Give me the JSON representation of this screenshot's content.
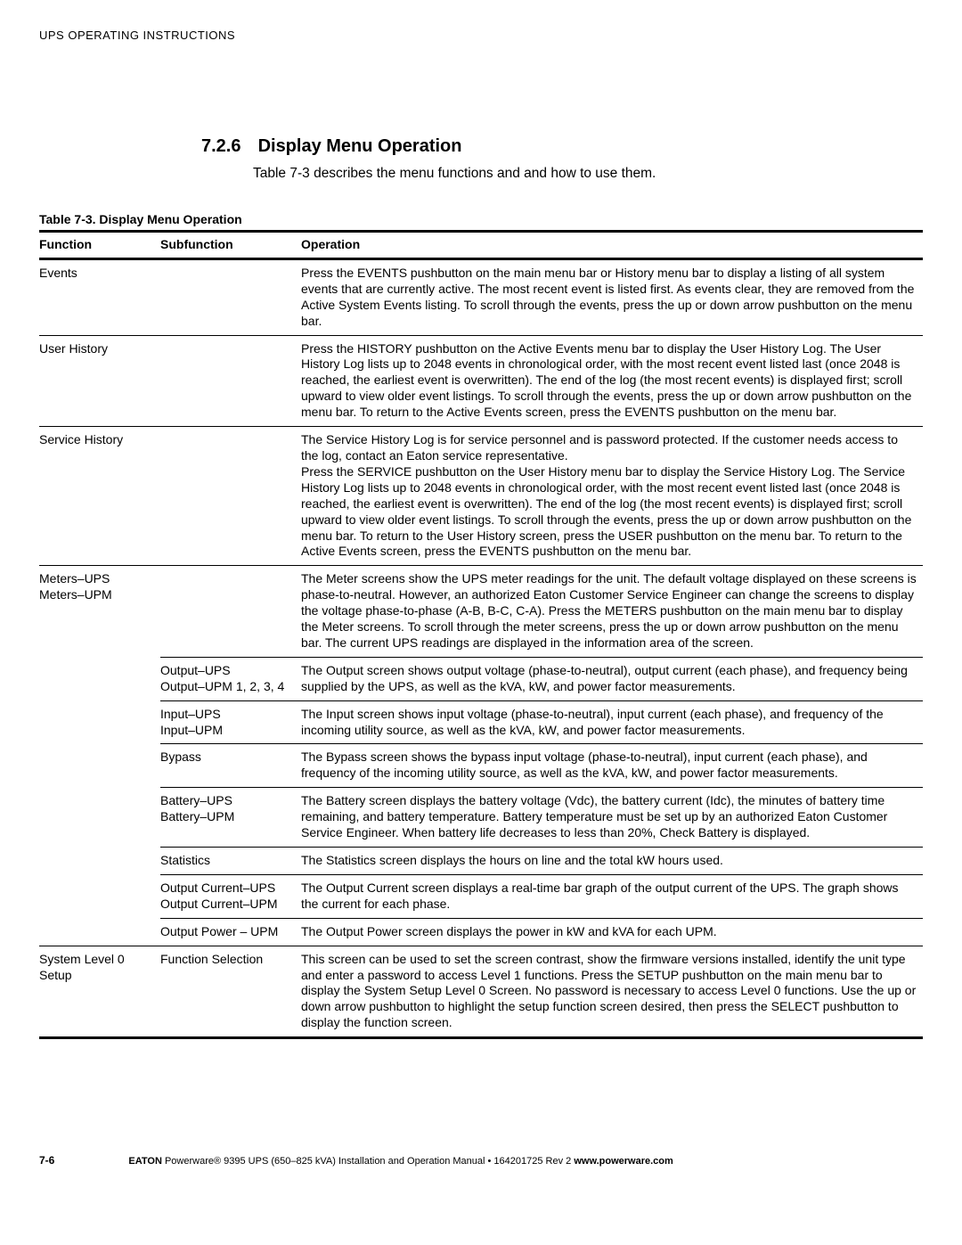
{
  "runningHead": "UPS OPERATING INSTRUCTIONS",
  "section": {
    "number": "7.2.6",
    "title": "Display Menu Operation"
  },
  "intro": "Table 7-3 describes the menu functions and and how to use them.",
  "table": {
    "caption": "Table 7-3. Display Menu Operation",
    "headers": {
      "func": "Function",
      "sub": "Subfunction",
      "op": "Operation"
    },
    "rows": [
      {
        "func": "Events",
        "sub": "",
        "op": "Press the EVENTS pushbutton on the main menu bar or History menu bar to display a listing of all system events that are currently active. The most recent event is listed first. As events clear, they are removed from the Active System Events listing. To scroll through the events, press the up or down arrow pushbutton on the menu bar.",
        "sep": "full"
      },
      {
        "func": "User History",
        "sub": "",
        "op": "Press the HISTORY pushbutton on the Active Events menu bar to display the User History Log. The User History Log lists up to 2048 events in chronological order, with the most recent event listed last (once 2048 is reached, the earliest event is overwritten). The end of the log (the most recent events) is displayed first; scroll upward to view older event listings. To scroll through the events, press the up or down arrow pushbutton on the menu bar. To return to the Active Events screen, press the EVENTS pushbutton on the menu bar.",
        "sep": "full"
      },
      {
        "func": "Service History",
        "sub": "",
        "op": "The Service History Log is for service personnel and is password protected. If the customer needs access to the log, contact an Eaton service representative.\nPress the SERVICE pushbutton on the User History menu bar to display the Service History Log. The Service History Log lists up to 2048 events in chronological order, with the most recent event listed last (once 2048 is reached, the earliest event is overwritten). The end of the log (the most recent events) is displayed first; scroll upward to view older event listings. To scroll through the events, press the up or down arrow pushbutton on the menu bar. To return to the User History screen, press the USER pushbutton on the menu bar. To return to the Active Events screen, press the EVENTS pushbutton on the menu bar.",
        "sep": "full"
      },
      {
        "func": "Meters–UPS\nMeters–UPM",
        "sub": "",
        "op": "The Meter screens show the UPS meter readings for the unit. The default voltage displayed on these screens is phase-to-neutral. However, an authorized Eaton Customer Service Engineer can change the screens to display the voltage phase-to-phase (A-B, B-C, C-A). Press the METERS pushbutton on the main menu bar to display the Meter screens. To scroll through the meter screens, press the up or down arrow pushbutton on the menu bar. The current UPS readings are displayed in the information area of the screen.",
        "sep": "part"
      },
      {
        "func": "",
        "sub": "Output–UPS\nOutput–UPM 1, 2, 3, 4",
        "op": "The Output screen shows output voltage (phase-to-neutral), output current (each phase), and frequency being supplied by the UPS, as well as the kVA, kW, and power factor measurements.",
        "sep": "part"
      },
      {
        "func": "",
        "sub": "Input–UPS\nInput–UPM",
        "op": "The Input screen shows input voltage (phase-to-neutral), input current (each phase), and frequency of the incoming utility source, as well as the kVA, kW, and power factor measurements.",
        "sep": "part"
      },
      {
        "func": "",
        "sub": "Bypass",
        "op": "The Bypass screen shows the bypass input voltage (phase-to-neutral), input current (each phase), and frequency of the incoming utility source, as well as the kVA, kW, and power factor measurements.",
        "sep": "part"
      },
      {
        "func": "",
        "sub": "Battery–UPS\nBattery–UPM",
        "op": "The Battery screen displays the battery voltage (Vdc), the battery current (Idc), the minutes of battery time remaining, and battery temperature. Battery temperature must be set up by an authorized Eaton Customer Service Engineer. When battery life decreases to less than 20%, Check Battery is displayed.",
        "sep": "part"
      },
      {
        "func": "",
        "sub": "Statistics",
        "op": "The Statistics screen displays the hours on line and the total kW hours used.",
        "sep": "part"
      },
      {
        "func": "",
        "sub": "Output Current–UPS\nOutput Current–UPM",
        "op": "The Output Current screen displays a real-time bar graph of the output current of the UPS. The graph shows the current for each phase.",
        "sep": "part"
      },
      {
        "func": "",
        "sub": "Output Power – UPM",
        "op": "The Output Power screen displays the power in kW and kVA for each UPM.",
        "sep": "full"
      },
      {
        "func": "System Level 0 Setup",
        "sub": "Function Selection",
        "op": "This screen can be used to set the screen contrast, show the firmware versions installed, identify the unit type and enter a password to access Level 1 functions. Press the SETUP pushbutton on the main menu bar to display the System Setup Level 0 Screen. No password is necessary to access Level 0 functions. Use the up or down arrow pushbutton to highlight the setup function screen desired, then press the SELECT pushbutton to display the function screen.",
        "sep": "last"
      }
    ]
  },
  "footer": {
    "pageNum": "7-6",
    "brand": "EATON",
    "middle": " Powerware® 9395 UPS (650–825 kVA) Installation and Operation Manual  •  164201725 Rev 2 ",
    "url": "www.powerware.com"
  }
}
